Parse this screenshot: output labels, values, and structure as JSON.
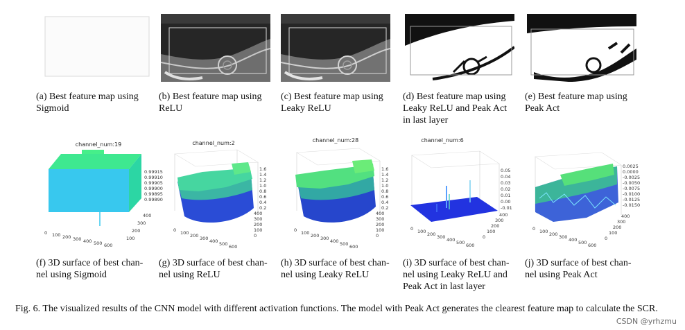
{
  "feature_maps": [
    {
      "caption": "(a) Best feature map using\nSigmoid"
    },
    {
      "caption": "(b) Best feature map using\nReLU"
    },
    {
      "caption": "(c) Best feature map using\nLeaky ReLU"
    },
    {
      "caption": "(d) Best feature map using\nLeaky ReLU and Peak Act\nin last layer"
    },
    {
      "caption": "(e) Best feature map using\nPeak Act"
    }
  ],
  "surfaces": [
    {
      "title": "channel_num:19",
      "caption": "(f) 3D surface of best chan-\nnel using Sigmoid",
      "zticks": [
        "0.99915",
        "0.99910",
        "0.99905",
        "0.99900",
        "0.99895",
        "0.99890"
      ],
      "xticks": [
        "0",
        "100",
        "200",
        "300",
        "400",
        "500",
        "600"
      ],
      "yticks": [
        "100",
        "200",
        "300",
        "400"
      ]
    },
    {
      "title": "channel_num:2",
      "caption": "(g) 3D surface of best chan-\nnel using ReLU",
      "zticks": [
        "1.6",
        "1.4",
        "1.2",
        "1.0",
        "0.8",
        "0.6",
        "0.4",
        "0.2"
      ],
      "xticks": [
        "0",
        "100",
        "200",
        "300",
        "400",
        "500",
        "600"
      ],
      "yticks": [
        "0",
        "100",
        "200",
        "300",
        "400"
      ]
    },
    {
      "title": "channel_num:28",
      "caption": "(h) 3D surface of best chan-\nnel using Leaky ReLU",
      "zticks": [
        "1.6",
        "1.4",
        "1.2",
        "1.0",
        "0.8",
        "0.6",
        "0.4",
        "0.2"
      ],
      "xticks": [
        "0",
        "100",
        "200",
        "300",
        "400",
        "500",
        "600"
      ],
      "yticks": [
        "0",
        "100",
        "200",
        "300",
        "400"
      ]
    },
    {
      "title": "channel_num:6",
      "caption": "(i) 3D surface of best chan-\nnel using Leaky ReLU and\nPeak Act in last layer",
      "zticks": [
        "0.05",
        "0.04",
        "0.03",
        "0.02",
        "0.01",
        "0.00",
        "-0.01"
      ],
      "xticks": [
        "0",
        "100",
        "200",
        "300",
        "400",
        "500",
        "600"
      ],
      "yticks": [
        "0",
        "100",
        "200",
        "300",
        "400"
      ]
    },
    {
      "title": "",
      "caption": "(j) 3D surface of best chan-\nnel using Peak Act",
      "zticks": [
        "0.0025",
        "0.0000",
        "-0.0025",
        "-0.0050",
        "-0.0075",
        "-0.0100",
        "-0.0125",
        "-0.0150"
      ],
      "xticks": [
        "0",
        "100",
        "200",
        "300",
        "400",
        "500",
        "600"
      ],
      "yticks": [
        "0",
        "100",
        "200",
        "300",
        "400"
      ]
    }
  ],
  "figure_caption": "Fig. 6.  The visualized results of the CNN model with different activation functions. The model with Peak Act generates the clearest feature map to calculate the SCR.",
  "watermark": "CSDN @yrhzmu"
}
